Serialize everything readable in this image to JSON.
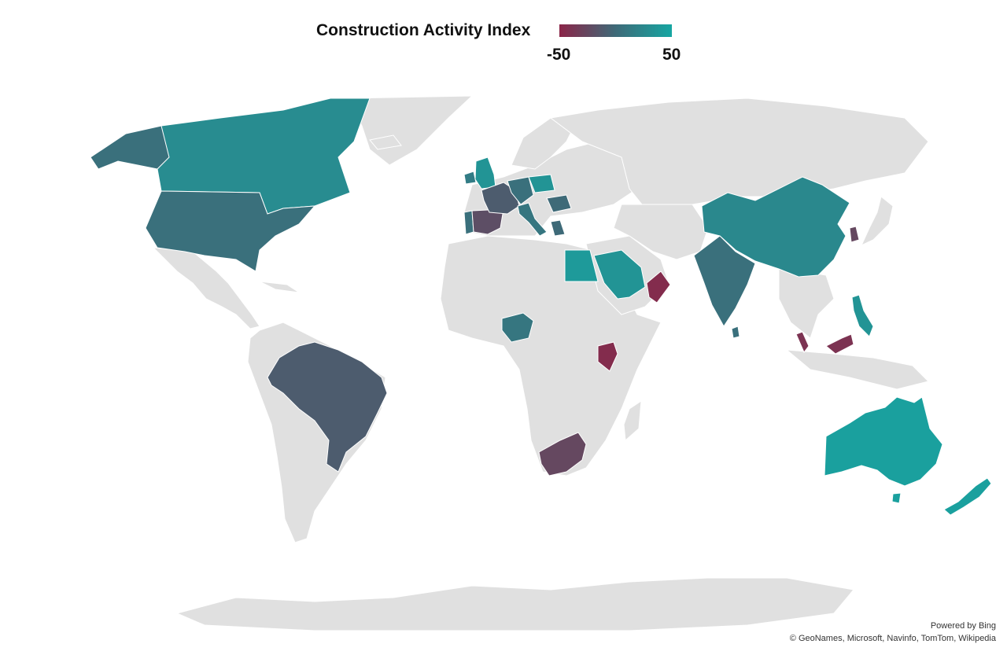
{
  "legend": {
    "title": "Construction Activity Index",
    "min_label": "-50",
    "max_label": "50",
    "min_value": -50,
    "max_value": 50,
    "low_color": "#8b2548",
    "mid_color": "#3e6a78",
    "high_color": "#16a6a2"
  },
  "map": {
    "land_color": "#e0e0e0",
    "border_color": "#ffffff",
    "regions_with_data": [
      {
        "name": "Canada",
        "level": 0.78
      },
      {
        "name": "United States",
        "level": 0.55
      },
      {
        "name": "Alaska",
        "level": 0.55
      },
      {
        "name": "Brazil",
        "level": 0.4
      },
      {
        "name": "United Kingdom",
        "level": 0.85
      },
      {
        "name": "Ireland",
        "level": 0.65
      },
      {
        "name": "France",
        "level": 0.4
      },
      {
        "name": "Spain",
        "level": 0.3
      },
      {
        "name": "Portugal",
        "level": 0.55
      },
      {
        "name": "Germany",
        "level": 0.55
      },
      {
        "name": "Poland",
        "level": 0.85
      },
      {
        "name": "Italy",
        "level": 0.6
      },
      {
        "name": "Romania",
        "level": 0.5
      },
      {
        "name": "Greece",
        "level": 0.5
      },
      {
        "name": "Egypt",
        "level": 0.9
      },
      {
        "name": "Saudi Arabia",
        "level": 0.85
      },
      {
        "name": "Oman",
        "level": 0.05
      },
      {
        "name": "India",
        "level": 0.55
      },
      {
        "name": "China",
        "level": 0.75
      },
      {
        "name": "South Korea",
        "level": 0.25
      },
      {
        "name": "Philippines",
        "level": 0.85
      },
      {
        "name": "Malaysia",
        "level": 0.1
      },
      {
        "name": "Nigeria",
        "level": 0.6
      },
      {
        "name": "Kenya",
        "level": 0.05
      },
      {
        "name": "South Africa",
        "level": 0.25
      },
      {
        "name": "Australia",
        "level": 0.95
      },
      {
        "name": "New Zealand",
        "level": 0.95
      }
    ]
  },
  "attribution": {
    "line1": "Powered by Bing",
    "line2": "© GeoNames, Microsoft, Navinfo, TomTom, Wikipedia"
  }
}
